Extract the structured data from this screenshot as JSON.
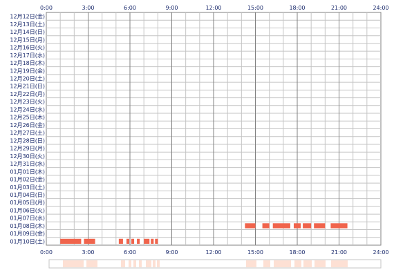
{
  "chart_data": {
    "type": "heatmap",
    "x_tick_labels": [
      "0:00",
      "3:00",
      "6:00",
      "9:00",
      "12:00",
      "15:00",
      "18:00",
      "21:00",
      "24:00"
    ],
    "xlim": [
      0,
      24
    ],
    "rows": [
      "12月12日(金)",
      "12月13日(土)",
      "12月14日(日)",
      "12月15日(月)",
      "12月16日(火)",
      "12月17日(水)",
      "12月18日(木)",
      "12月19日(金)",
      "12月20日(土)",
      "12月21日(日)",
      "12月22日(月)",
      "12月23日(火)",
      "12月24日(水)",
      "12月25日(木)",
      "12月26日(金)",
      "12月27日(土)",
      "12月28日(日)",
      "12月29日(月)",
      "12月30日(火)",
      "12月31日(水)",
      "01月01日(木)",
      "01月02日(金)",
      "01月03日(土)",
      "01月04日(日)",
      "01月05日(月)",
      "01月06日(火)",
      "01月07日(水)",
      "01月08日(木)",
      "01月09日(金)",
      "01月10日(土)"
    ],
    "activity": [
      {
        "row": "01月08日(木)",
        "start": 14.25,
        "end": 15.0
      },
      {
        "row": "01月08日(木)",
        "start": 15.5,
        "end": 16.0
      },
      {
        "row": "01月08日(木)",
        "start": 16.25,
        "end": 17.5
      },
      {
        "row": "01月08日(木)",
        "start": 17.75,
        "end": 18.25
      },
      {
        "row": "01月08日(木)",
        "start": 18.4,
        "end": 19.0
      },
      {
        "row": "01月08日(木)",
        "start": 19.2,
        "end": 20.0
      },
      {
        "row": "01月08日(木)",
        "start": 20.4,
        "end": 21.6
      },
      {
        "row": "01月10日(土)",
        "start": 1.0,
        "end": 2.5
      },
      {
        "row": "01月10日(土)",
        "start": 2.7,
        "end": 3.5
      },
      {
        "row": "01月10日(土)",
        "start": 5.2,
        "end": 5.5
      },
      {
        "row": "01月10日(土)",
        "start": 5.75,
        "end": 5.95
      },
      {
        "row": "01月10日(土)",
        "start": 6.1,
        "end": 6.3
      },
      {
        "row": "01月10日(土)",
        "start": 6.5,
        "end": 6.7
      },
      {
        "row": "01月10日(土)",
        "start": 7.0,
        "end": 7.4
      },
      {
        "row": "01月10日(土)",
        "start": 7.5,
        "end": 7.7
      },
      {
        "row": "01月10日(土)",
        "start": 7.8,
        "end": 8.0
      }
    ],
    "colors": {
      "bar": "#f0644c",
      "summary": "#fde0d4",
      "grid_major": "#808080",
      "grid_minor": "#c4c4c4",
      "label": "#1a2a6c"
    }
  }
}
